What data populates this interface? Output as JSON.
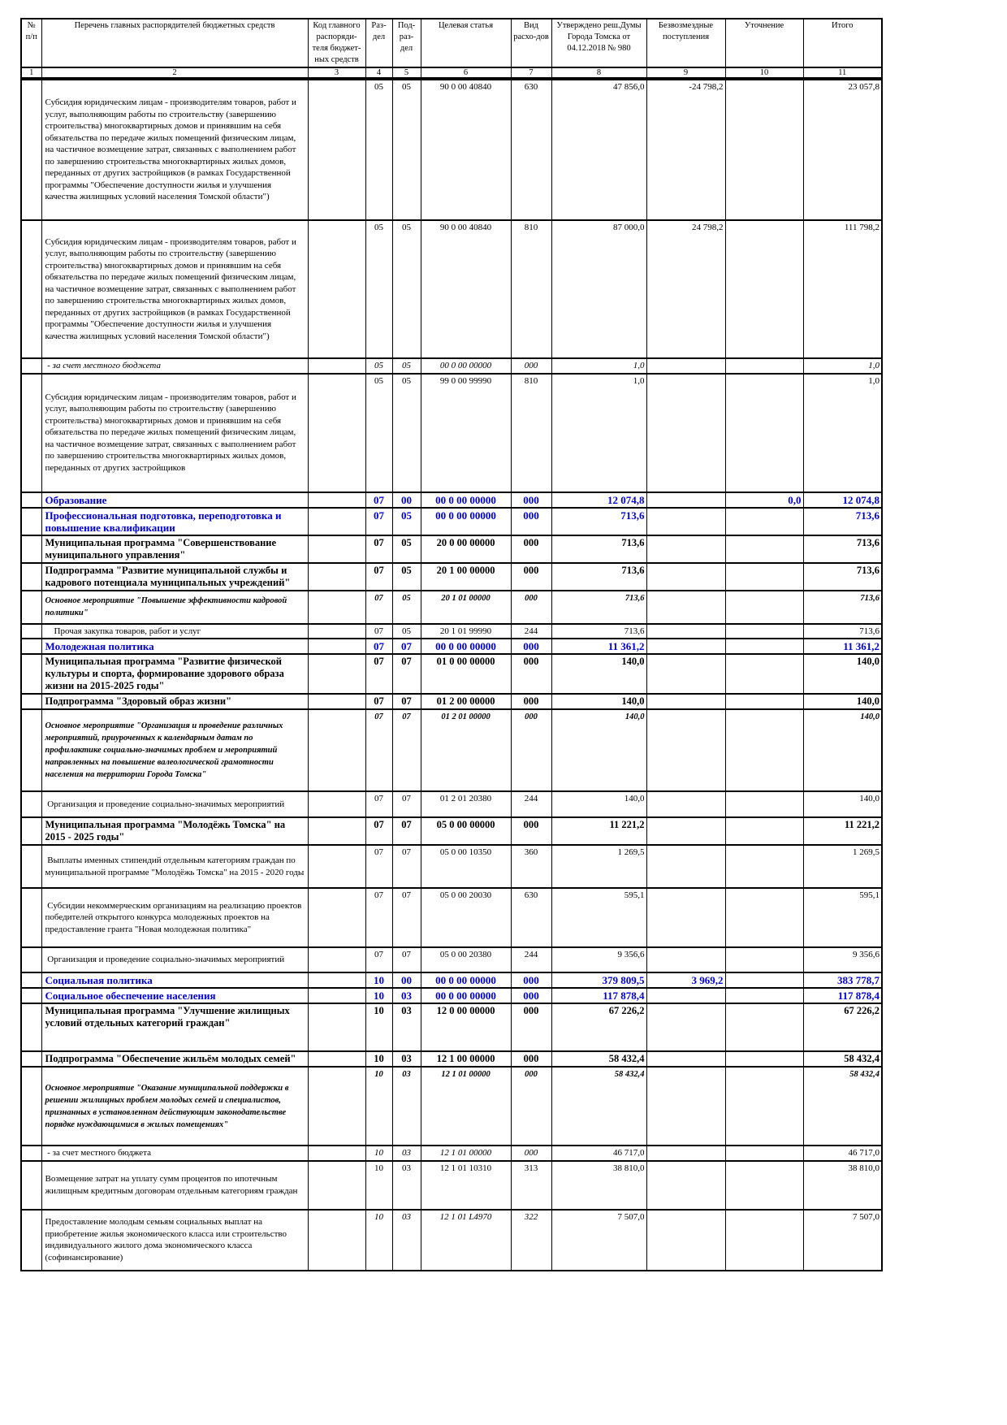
{
  "header": {
    "columns": [
      "№ п/п",
      "Перечень главных распорядителей бюджетных средств",
      "Код главного распоряди-теля бюджет-ных средств",
      "Раз-дел",
      "Под-раз-дел",
      "Целевая статья",
      "Вид расхо-дов",
      "Утверждено реш.Думы Города Томска от 04.12.2018 № 980",
      "Безвозмездные поступления",
      "Уточнение",
      "Итого"
    ],
    "numbers": [
      "1",
      "2",
      "3",
      "4",
      "5",
      "6",
      "7",
      "8",
      "9",
      "10",
      "11"
    ]
  },
  "rows": [
    {
      "style": "normal",
      "h": 174,
      "name": "Субсидия юридическим лицам - производителям товаров, работ и услуг, выполняющим работы по строительству (завершению строительства) многоквартирных домов и принявшим на себя обязательства по передаче жилых помещений физическим лицам, на частичное возмещение затрат, связанных с выполнением работ по завершению строительства многоквартирных жилых домов, переданных от других застройщиков (в рамках Государственной программы \"Обеспечение доступности жилья и улучшения качества жилищных условий населения Томской области\")",
      "code": "",
      "razdel": "05",
      "podrazdel": "05",
      "cs": "90 0 00 40840",
      "vr": "630",
      "approved": "47 856,0",
      "bezv": "-24 798,2",
      "utoch": "",
      "total": "23 057,8"
    },
    {
      "style": "normal",
      "h": 170,
      "name": "Субсидия юридическим лицам - производителям товаров, работ и услуг, выполняющим работы по строительству (завершению строительства) многоквартирных домов и принявшим на себя обязательства по передаче жилых помещений физическим лицам, на частичное возмещение затрат, связанных с выполнением работ по завершению строительства многоквартирных жилых домов, переданных от других застройщиков (в рамках Государственной программы \"Обеспечение доступности жилья и улучшения качества жилищных условий населения Томской области\")",
      "code": "",
      "razdel": "05",
      "podrazdel": "05",
      "cs": "90 0 00 40840",
      "vr": "810",
      "approved": "87 000,0",
      "bezv": "24 798,2",
      "utoch": "",
      "total": "111 798,2"
    },
    {
      "style": "italic",
      "h": 15,
      "name": " - за счет местного бюджета",
      "code": "",
      "razdel": "05",
      "podrazdel": "05",
      "cs": "00 0 00 00000",
      "vr": "000",
      "approved": "1,0",
      "bezv": "",
      "utoch": "",
      "total": "1,0"
    },
    {
      "style": "normal",
      "h": 146,
      "name": "Субсидия юридическим лицам - производителям товаров, работ и услуг, выполняющим работы по строительству (завершению строительства) многоквартирных домов и принявшим на себя обязательства по передаче жилых помещений физическим лицам, на частичное возмещение затрат, связанных с выполнением работ по завершению строительства многоквартирных жилых домов, переданных от других застройщиков",
      "code": "",
      "razdel": "05",
      "podrazdel": "05",
      "cs": "99 0 00 99990",
      "vr": "810",
      "approved": "1,0",
      "bezv": "",
      "utoch": "",
      "total": "1,0"
    },
    {
      "style": "blue",
      "h": 19,
      "name": "Образование",
      "code": "",
      "razdel": "07",
      "podrazdel": "00",
      "cs": "00 0 00 00000",
      "vr": "000",
      "approved": "12 074,8",
      "bezv": "",
      "utoch": "0,0",
      "total": "12 074,8"
    },
    {
      "style": "blue",
      "h": 30,
      "name": "Профессиональная подготовка, переподготовка и повышение квалификации",
      "code": "",
      "razdel": "07",
      "podrazdel": "05",
      "cs": "00 0 00 00000",
      "vr": "000",
      "approved": "713,6",
      "bezv": "",
      "utoch": "",
      "total": "713,6"
    },
    {
      "style": "bold",
      "h": 33,
      "name": "Муниципальная программа \"Совершенствование муниципального управления\"",
      "code": "",
      "razdel": "07",
      "podrazdel": "05",
      "cs": "20 0 00 00000",
      "vr": "000",
      "approved": "713,6",
      "bezv": "",
      "utoch": "",
      "total": "713,6"
    },
    {
      "style": "bold",
      "h": 31,
      "name": "Подпрограмма \"Развитие муниципальной службы и кадрового потенциала муниципальных учреждений\"",
      "code": "",
      "razdel": "07",
      "podrazdel": "05",
      "cs": "20 1 00 00000",
      "vr": "000",
      "approved": "713,6",
      "bezv": "",
      "utoch": "",
      "total": "713,6"
    },
    {
      "style": "bolditalic",
      "h": 41,
      "name": "Основное мероприятие \"Повышение эффективности кадровой политики\"",
      "code": "",
      "razdel": "07",
      "podrazdel": "05",
      "cs": "20 1 01 00000",
      "vr": "000",
      "approved": "713,6",
      "bezv": "",
      "utoch": "",
      "total": "713,6"
    },
    {
      "style": "normal",
      "h": 15,
      "name": "    Прочая закупка товаров, работ и услуг",
      "code": "",
      "razdel": "07",
      "podrazdel": "05",
      "cs": "20 1 01 99990",
      "vr": "244",
      "approved": "713,6",
      "bezv": "",
      "utoch": "",
      "total": "713,6"
    },
    {
      "style": "blue",
      "h": 16,
      "name": "Молодежная политика",
      "code": "",
      "razdel": "07",
      "podrazdel": "07",
      "cs": "00 0 00 00000",
      "vr": "000",
      "approved": "11 361,2",
      "bezv": "",
      "utoch": "",
      "total": "11 361,2"
    },
    {
      "style": "bold",
      "h": 48,
      "name": "Муниципальная программа \"Развитие физической культуры и спорта, формирование здорового образа жизни на 2015-2025 годы\"",
      "code": "",
      "razdel": "07",
      "podrazdel": "07",
      "cs": "01 0 00 00000",
      "vr": "000",
      "approved": "140,0",
      "bezv": "",
      "utoch": "",
      "total": "140,0"
    },
    {
      "style": "bold",
      "h": 14,
      "name": "Подпрограмма \"Здоровый образ жизни\"",
      "code": "",
      "razdel": "07",
      "podrazdel": "07",
      "cs": "01 2 00 00000",
      "vr": "000",
      "approved": "140,0",
      "bezv": "",
      "utoch": "",
      "total": "140,0"
    },
    {
      "style": "bolditalic",
      "h": 101,
      "name": "Основное мероприятие \"Организация и проведение различных мероприятий, приуроченных к календарным датам по профилактике социально-значимых проблем и мероприятий направленных на повышение валеологической грамотности населения на территории Города Томска\"",
      "code": "",
      "razdel": "07",
      "podrazdel": "07",
      "cs": "01 2 01 00000",
      "vr": "000",
      "approved": "140,0",
      "bezv": "",
      "utoch": "",
      "total": "140,0"
    },
    {
      "style": "normal",
      "h": 32,
      "name": " Организация и проведение социально-значимых мероприятий",
      "code": "",
      "razdel": "07",
      "podrazdel": "07",
      "cs": "01 2 01 20380",
      "vr": "244",
      "approved": "140,0",
      "bezv": "",
      "utoch": "",
      "total": "140,0"
    },
    {
      "style": "bold",
      "h": 30,
      "name": "Муниципальная программа \"Молодёжь Томска\" на 2015 - 2025 годы\"",
      "code": "",
      "razdel": "07",
      "podrazdel": "07",
      "cs": "05 0 00 00000",
      "vr": "000",
      "approved": "11 221,2",
      "bezv": "",
      "utoch": "",
      "total": "11 221,2"
    },
    {
      "style": "normal",
      "h": 53,
      "name": " Выплаты именных стипендий отдельным категориям граждан по муниципальной программе \"Молодёжь Томска\" на 2015 - 2020 годы",
      "code": "",
      "razdel": "07",
      "podrazdel": "07",
      "cs": "05 0 00 10350",
      "vr": "360",
      "approved": "1 269,5",
      "bezv": "",
      "utoch": "",
      "total": "1 269,5"
    },
    {
      "style": "normal",
      "h": 73,
      "name": " Субсидии некоммерческим организациям на реализацию проектов победителей открытого конкурса молодежных проектов на предоставление гранта \"Новая молодежная политика\"",
      "code": "",
      "razdel": "07",
      "podrazdel": "07",
      "cs": "05 0 00 20030",
      "vr": "630",
      "approved": "595,1",
      "bezv": "",
      "utoch": "",
      "total": "595,1"
    },
    {
      "style": "normal",
      "h": 31,
      "name": " Организация и проведение социально-значимых мероприятий",
      "code": "",
      "razdel": "07",
      "podrazdel": "07",
      "cs": "05 0 00 20380",
      "vr": "244",
      "approved": "9 356,6",
      "bezv": "",
      "utoch": "",
      "total": "9 356,6"
    },
    {
      "style": "blue",
      "h": 19,
      "name": "Социальная политика",
      "code": "",
      "razdel": "10",
      "podrazdel": "00",
      "cs": "00 0 00 00000",
      "vr": "000",
      "approved": "379 809,5",
      "bezv": "3 969,2",
      "utoch": "",
      "total": "383 778,7"
    },
    {
      "style": "blue",
      "h": 19,
      "name": "Социальное обеспечение населения",
      "code": "",
      "razdel": "10",
      "podrazdel": "03",
      "cs": "00 0 00 00000",
      "vr": "000",
      "approved": "117 878,4",
      "bezv": "",
      "utoch": "",
      "total": "117 878,4"
    },
    {
      "style": "bold",
      "h": 59,
      "name": "Муниципальная программа \"Улучшение жилищных условий отдельных категорий граждан\"",
      "code": "",
      "razdel": "10",
      "podrazdel": "03",
      "cs": "12 0 00 00000",
      "vr": "000",
      "approved": "67 226,2",
      "bezv": "",
      "utoch": "",
      "total": "67 226,2"
    },
    {
      "style": "bold",
      "h": 19,
      "name": "Подпрограмма \"Обеспечение жильём молодых семей\"",
      "code": "",
      "razdel": "10",
      "podrazdel": "03",
      "cs": "12 1 00 00000",
      "vr": "000",
      "approved": "58 432,4",
      "bezv": "",
      "utoch": "",
      "total": "58 432,4"
    },
    {
      "style": "bolditalic",
      "h": 97,
      "name": "Основное мероприятие \"Оказание муниципальной поддержки в решении жилищных проблем молодых семей и специалистов, признанных в установленном действующим законодательстве порядке нуждающимися в жилых помещениях\"",
      "code": "",
      "razdel": "10",
      "podrazdel": "03",
      "cs": "12 1 01 00000",
      "vr": "000",
      "approved": "58 432,4",
      "bezv": "",
      "utoch": "",
      "total": "58 432,4"
    },
    {
      "style": "italiccodes",
      "h": 17,
      "name": " - за счет местного бюджета",
      "code": "",
      "razdel": "10",
      "podrazdel": "03",
      "cs": "12 1 01 00000",
      "vr": "000",
      "approved": "46 717,0",
      "bezv": "",
      "utoch": "",
      "total": "46 717,0"
    },
    {
      "style": "normal",
      "h": 60,
      "name": "Возмещение затрат на уплату сумм процентов по ипотечным жилищным кредитным договорам отдельным категориям граждан",
      "code": "",
      "razdel": "10",
      "podrazdel": "03",
      "cs": "12 1 01 10310",
      "vr": "313",
      "approved": "38 810,0",
      "bezv": "",
      "utoch": "",
      "total": "38 810,0"
    },
    {
      "style": "italiccodes",
      "h": 75,
      "name": "Предоставление молодым семьям социальных выплат на приобретение жилья экономического класса или строительство индивидуального жилого дома экономического класса (софинансирование)",
      "code": "",
      "razdel": "10",
      "podrazdel": "03",
      "cs": "12 1 01 L4970",
      "vr": "322",
      "approved": "7 507,0",
      "bezv": "",
      "utoch": "",
      "total": "7 507,0"
    }
  ]
}
